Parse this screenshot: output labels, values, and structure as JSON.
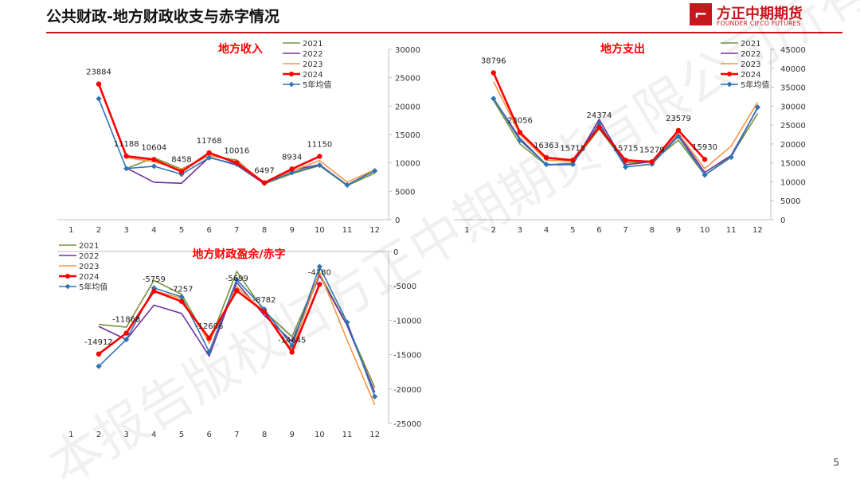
{
  "page": {
    "title": "公共财政-地方财政收支与赤字情况",
    "logo_text": "方正中期期货",
    "logo_sub": "FOUNDER CIFCO FUTURES",
    "page_number": "5",
    "watermark": "本报告版权归方正中期期货有限公司所有"
  },
  "colors": {
    "2021": "#77933c",
    "2022": "#7030a0",
    "2023": "#f79646",
    "2024": "#ff0000",
    "5年均值": "#2e75b6",
    "accent": "#c8161d"
  },
  "chart_data": [
    {
      "type": "line",
      "title": "地方收入",
      "x": [
        "1",
        "2",
        "3",
        "4",
        "5",
        "6",
        "7",
        "8",
        "9",
        "10",
        "11",
        "12"
      ],
      "ylim": [
        0,
        30000
      ],
      "yticks": [
        "0",
        "5000",
        "10000",
        "15000",
        "20000",
        "25000",
        "30000"
      ],
      "legend": "top-right",
      "series": [
        {
          "name": "2021",
          "values": [
            null,
            null,
            9000,
            10900,
            8900,
            11300,
            10500,
            6300,
            8100,
            9500,
            6000,
            8200
          ]
        },
        {
          "name": "2022",
          "values": [
            null,
            null,
            9100,
            6600,
            6400,
            11000,
            9600,
            6300,
            8700,
            9700,
            6100,
            8700
          ]
        },
        {
          "name": "2023",
          "values": [
            null,
            null,
            10900,
            10200,
            8800,
            11300,
            10300,
            6500,
            8600,
            10400,
            6600,
            8800
          ]
        },
        {
          "name": "2024",
          "values": [
            null,
            23884,
            11188,
            10604,
            8458,
            11768,
            10016,
            6497,
            8934,
            11150,
            null,
            null
          ]
        },
        {
          "name": "5年均值",
          "values": [
            null,
            21300,
            9000,
            9400,
            8000,
            10900,
            9800,
            6400,
            8300,
            9600,
            6100,
            8600
          ]
        }
      ],
      "data_labels": [
        "23884",
        "11188",
        "10604",
        "8458",
        "11768",
        "10016",
        "6497",
        "8934",
        "11150"
      ]
    },
    {
      "type": "line",
      "title": "地方支出",
      "x": [
        "1",
        "2",
        "3",
        "4",
        "5",
        "6",
        "7",
        "8",
        "9",
        "10",
        "11",
        "12"
      ],
      "ylim": [
        0,
        45000
      ],
      "yticks": [
        "0",
        "5000",
        "10000",
        "15000",
        "20000",
        "25000",
        "30000",
        "35000",
        "40000",
        "45000"
      ],
      "legend": "top-right",
      "series": [
        {
          "name": "2021",
          "values": [
            null,
            31500,
            20000,
            14400,
            15000,
            24000,
            15000,
            15300,
            21000,
            11800,
            16800,
            28000
          ]
        },
        {
          "name": "2022",
          "values": [
            null,
            32000,
            21500,
            14500,
            14500,
            26500,
            14500,
            15300,
            22500,
            12500,
            17000,
            29500
          ]
        },
        {
          "name": "2023",
          "values": [
            null,
            36500,
            22500,
            15700,
            15500,
            24500,
            15500,
            15500,
            22800,
            13500,
            19500,
            31000
          ]
        },
        {
          "name": "2024",
          "values": [
            null,
            38796,
            23056,
            16363,
            15715,
            24374,
            15715,
            15279,
            23579,
            15930,
            null,
            null
          ]
        },
        {
          "name": "5年均值",
          "values": [
            null,
            32000,
            21000,
            14600,
            14600,
            25500,
            13900,
            14700,
            22000,
            11800,
            16500,
            29700
          ]
        }
      ],
      "data_labels": [
        "38796",
        "23056",
        "16363",
        "15715",
        "24374",
        "15715",
        "15279",
        "23579",
        "15930"
      ]
    },
    {
      "type": "line",
      "title": "地方财政盈余/赤字",
      "x": [
        "1",
        "2",
        "3",
        "4",
        "5",
        "6",
        "7",
        "8",
        "9",
        "10",
        "11",
        "12"
      ],
      "ylim": [
        -25000,
        0
      ],
      "yticks": [
        "0",
        "-5000",
        "-10000",
        "-15000",
        "-20000",
        "-25000"
      ],
      "legend": "top-left",
      "series": [
        {
          "name": "2021",
          "values": [
            null,
            -10600,
            -11000,
            -4200,
            -6200,
            -13300,
            -2900,
            -8700,
            -12400,
            -3200,
            -10700,
            -19800
          ]
        },
        {
          "name": "2022",
          "values": [
            null,
            -10900,
            -12800,
            -7800,
            -9000,
            -15200,
            -4500,
            -9300,
            -13100,
            -3500,
            -10800,
            -20500
          ]
        },
        {
          "name": "2023",
          "values": [
            null,
            -15000,
            -11800,
            -5700,
            -6800,
            -13200,
            -5100,
            -8800,
            -14300,
            -3000,
            -12900,
            -22300
          ]
        },
        {
          "name": "2024",
          "values": [
            null,
            -14912,
            -11868,
            -5759,
            -7257,
            -12606,
            -5699,
            -8782,
            -14645,
            -4780,
            null,
            null
          ]
        },
        {
          "name": "5年均值",
          "values": [
            null,
            -16700,
            -12800,
            -5300,
            -6600,
            -14600,
            -4100,
            -8400,
            -13700,
            -2200,
            -10300,
            -21100
          ]
        }
      ],
      "data_labels": [
        "-14912",
        "-11868",
        "-5759",
        "-7257",
        "-12606",
        "-5699",
        "-8782",
        "-14645",
        "-4780"
      ]
    }
  ]
}
